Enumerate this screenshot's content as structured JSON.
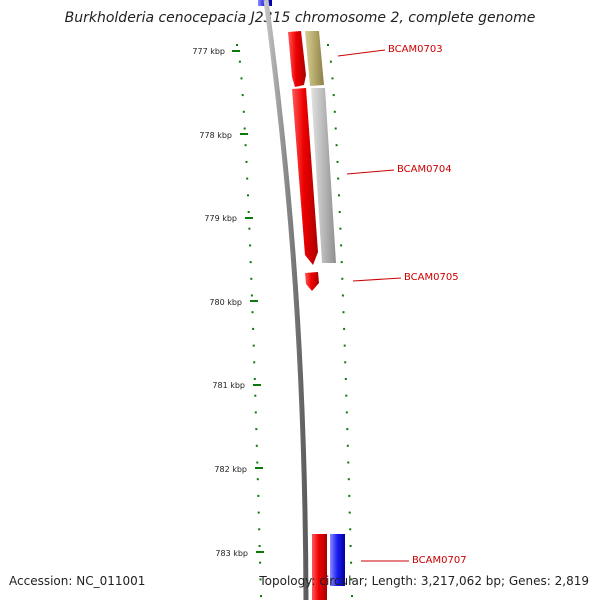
{
  "title": "Burkholderia cenocepacia J2315 chromosome 2, complete genome",
  "accession": "Accession: NC_011001",
  "summary": "Topology: circular; Length: 3,217,062 bp; Genes: 2,819",
  "ticks": [
    "777 kbp",
    "778 kbp",
    "779 kbp",
    "780 kbp",
    "781 kbp",
    "782 kbp",
    "783 kbp"
  ],
  "genes": [
    {
      "label": "BCAM0703"
    },
    {
      "label": "BCAM0704"
    },
    {
      "label": "BCAM0705"
    },
    {
      "label": "BCAM0707"
    }
  ],
  "colors": {
    "red_cds": "#ee0000",
    "blue_cds": "#1a1aee",
    "tan_feature": "#b5a96a",
    "gray_feature": "#b9b9b9",
    "backbone": "#8a8a8a",
    "tick_green": "#0a7a0a",
    "label_red": "#cc0000"
  }
}
